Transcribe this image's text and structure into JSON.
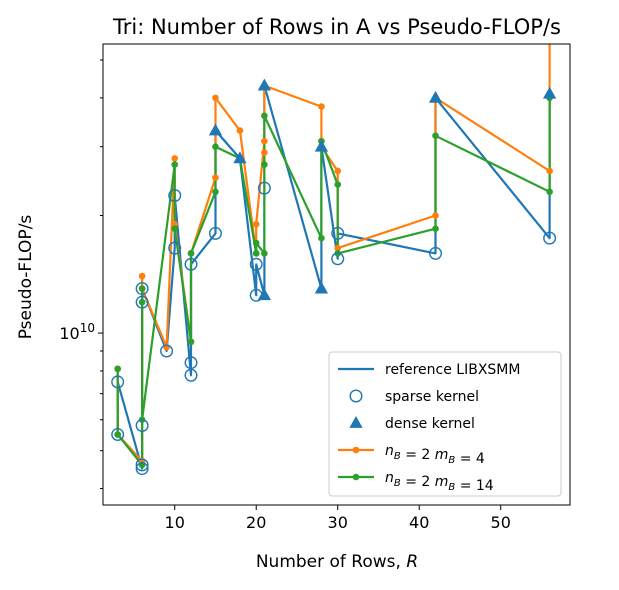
{
  "chart_data": {
    "type": "line",
    "title": "Tri: Number of Rows in A vs Pseudo-FLOP/s",
    "xlabel": "Number of Rows, R",
    "ylabel": "Pseudo-FLOP/s",
    "xlim": [
      1.2,
      58.5
    ],
    "ylim_log10": [
      9.56,
      10.74
    ],
    "y_scale": "log",
    "x_ticks": [
      10,
      20,
      30,
      40,
      50
    ],
    "y_major_ticks": [
      {
        "value": 10,
        "label": "10"
      }
    ],
    "y_minor_ticks": [
      4000000000,
      5000000000,
      6000000000,
      7000000000,
      8000000000,
      9000000000,
      20000000000,
      30000000000,
      40000000000,
      50000000000
    ],
    "legend_position": "lower-right",
    "legend": [
      {
        "key": "ref",
        "label": "reference LIBXSMM",
        "marker": "line",
        "color": "#1f77b4"
      },
      {
        "key": "sparse",
        "label": "sparse kernel",
        "marker": "open-circle",
        "color": "#1f77b4"
      },
      {
        "key": "dense",
        "label": "dense kernel",
        "marker": "triangle",
        "color": "#1f77b4"
      },
      {
        "key": "nb2mb4",
        "label": "n_B = 2 m_B = 4",
        "marker": "line-dot",
        "color": "#ff7f0e"
      },
      {
        "key": "nb2mb14",
        "label": "n_B = 2 m_B = 14",
        "marker": "line-dot",
        "color": "#2ca02c"
      }
    ],
    "series": [
      {
        "name": "reference LIBXSMM",
        "color": "#1f77b4",
        "points": [
          [
            3,
            5500000000.0
          ],
          [
            3,
            7500000000.0
          ],
          [
            6,
            4500000000.0
          ],
          [
            6,
            4600000000.0
          ],
          [
            6,
            5800000000.0
          ],
          [
            6,
            12000000000.0
          ],
          [
            6,
            13000000000.0
          ],
          [
            9,
            9000000000.0
          ],
          [
            10,
            16500000000.0
          ],
          [
            10,
            22500000000.0
          ],
          [
            12,
            7800000000.0
          ],
          [
            12,
            8400000000.0
          ],
          [
            12,
            15000000000.0
          ],
          [
            15,
            18000000000.0
          ],
          [
            15,
            33000000000.0
          ],
          [
            18,
            28000000000.0
          ],
          [
            20,
            12500000000.0
          ],
          [
            20,
            15000000000.0
          ],
          [
            21,
            12500000000.0
          ],
          [
            21,
            23500000000.0
          ],
          [
            21,
            43000000000.0
          ],
          [
            28,
            13000000000.0
          ],
          [
            28,
            30000000000.0
          ],
          [
            30,
            15500000000.0
          ],
          [
            30,
            18000000000.0
          ],
          [
            42,
            16000000000.0
          ],
          [
            42,
            40000000000.0
          ],
          [
            56,
            17500000000.0
          ],
          [
            56,
            41000000000.0
          ]
        ]
      },
      {
        "name": "sparse kernel",
        "color": "#1f77b4",
        "points": [
          [
            3,
            5500000000.0
          ],
          [
            3,
            7500000000.0
          ],
          [
            6,
            4500000000.0
          ],
          [
            6,
            4600000000.0
          ],
          [
            6,
            5800000000.0
          ],
          [
            6,
            12000000000.0
          ],
          [
            6,
            13000000000.0
          ],
          [
            9,
            9000000000.0
          ],
          [
            10,
            16500000000.0
          ],
          [
            10,
            22500000000.0
          ],
          [
            12,
            7800000000.0
          ],
          [
            12,
            8400000000.0
          ],
          [
            12,
            15000000000.0
          ],
          [
            15,
            18000000000.0
          ],
          [
            20,
            12500000000.0
          ],
          [
            20,
            15000000000.0
          ],
          [
            21,
            23500000000.0
          ],
          [
            30,
            15500000000.0
          ],
          [
            30,
            18000000000.0
          ],
          [
            42,
            16000000000.0
          ],
          [
            56,
            17500000000.0
          ]
        ]
      },
      {
        "name": "dense kernel",
        "color": "#1f77b4",
        "points": [
          [
            15,
            33000000000.0
          ],
          [
            18,
            28000000000.0
          ],
          [
            21,
            12500000000.0
          ],
          [
            21,
            43000000000.0
          ],
          [
            28,
            13000000000.0
          ],
          [
            28,
            30000000000.0
          ],
          [
            42,
            40000000000.0
          ],
          [
            56,
            41000000000.0
          ]
        ]
      },
      {
        "name": "n_B = 2 m_B = 4",
        "color": "#ff7f0e",
        "points": [
          [
            3,
            8100000000.0
          ],
          [
            3,
            5500000000.0
          ],
          [
            6,
            4700000000.0
          ],
          [
            6,
            14000000000.0
          ],
          [
            6,
            13000000000.0
          ],
          [
            9,
            9200000000.0
          ],
          [
            10,
            28000000000.0
          ],
          [
            10,
            19000000000.0
          ],
          [
            12,
            9500000000.0
          ],
          [
            12,
            16000000000.0
          ],
          [
            15,
            25000000000.0
          ],
          [
            15,
            40000000000.0
          ],
          [
            18,
            33000000000.0
          ],
          [
            20,
            16000000000.0
          ],
          [
            20,
            19000000000.0
          ],
          [
            21,
            31000000000.0
          ],
          [
            21,
            29000000000.0
          ],
          [
            21,
            43000000000.0
          ],
          [
            28,
            38000000000.0
          ],
          [
            28,
            30000000000.0
          ],
          [
            30,
            26000000000.0
          ],
          [
            30,
            16500000000.0
          ],
          [
            42,
            20000000000.0
          ],
          [
            42,
            40000000000.0
          ],
          [
            56,
            26000000000.0
          ],
          [
            56,
            58000000000.0
          ]
        ]
      },
      {
        "name": "n_B = 2 m_B = 14",
        "color": "#2ca02c",
        "points": [
          [
            3,
            8100000000.0
          ],
          [
            3,
            5500000000.0
          ],
          [
            6,
            4600000000.0
          ],
          [
            6,
            12000000000.0
          ],
          [
            6,
            13000000000.0
          ],
          [
            6,
            6000000000.0
          ],
          [
            10,
            27000000000.0
          ],
          [
            10,
            18500000000.0
          ],
          [
            12,
            9500000000.0
          ],
          [
            12,
            16000000000.0
          ],
          [
            15,
            23000000000.0
          ],
          [
            15,
            30000000000.0
          ],
          [
            18,
            28000000000.0
          ],
          [
            20,
            16000000000.0
          ],
          [
            20,
            17000000000.0
          ],
          [
            21,
            16000000000.0
          ],
          [
            21,
            27000000000.0
          ],
          [
            21,
            36000000000.0
          ],
          [
            28,
            17500000000.0
          ],
          [
            28,
            31000000000.0
          ],
          [
            30,
            24000000000.0
          ],
          [
            30,
            16000000000.0
          ],
          [
            42,
            18500000000.0
          ],
          [
            42,
            32000000000.0
          ],
          [
            56,
            23000000000.0
          ],
          [
            56,
            40000000000.0
          ]
        ]
      }
    ]
  }
}
